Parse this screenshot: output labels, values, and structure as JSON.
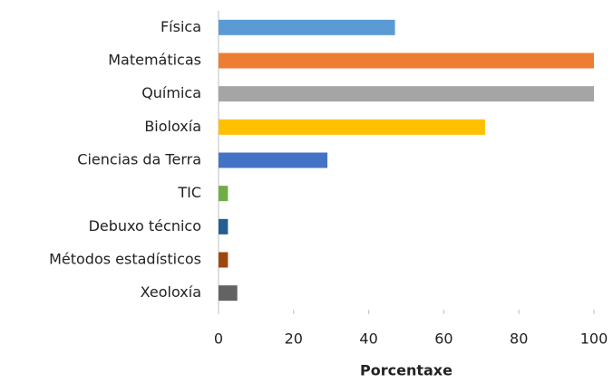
{
  "chart_data": {
    "type": "barh",
    "categories": [
      "Física",
      "Matemáticas",
      "Química",
      "Bioloxía",
      "Ciencias da Terra",
      "TIC",
      "Debuxo técnico",
      "Métodos estadísticos",
      "Xeoloxía"
    ],
    "values": [
      47,
      100,
      100,
      71,
      29,
      2.5,
      2.5,
      2.5,
      5
    ],
    "colors": [
      "#5b9bd5",
      "#ed7d31",
      "#a5a5a5",
      "#ffc000",
      "#4472c4",
      "#70ad47",
      "#255e91",
      "#9e480e",
      "#636363"
    ],
    "x_label": "Porcentaxe",
    "xlim": [
      0,
      100
    ],
    "xticks": [
      0,
      20,
      40,
      60,
      80,
      100
    ],
    "grid": false
  }
}
